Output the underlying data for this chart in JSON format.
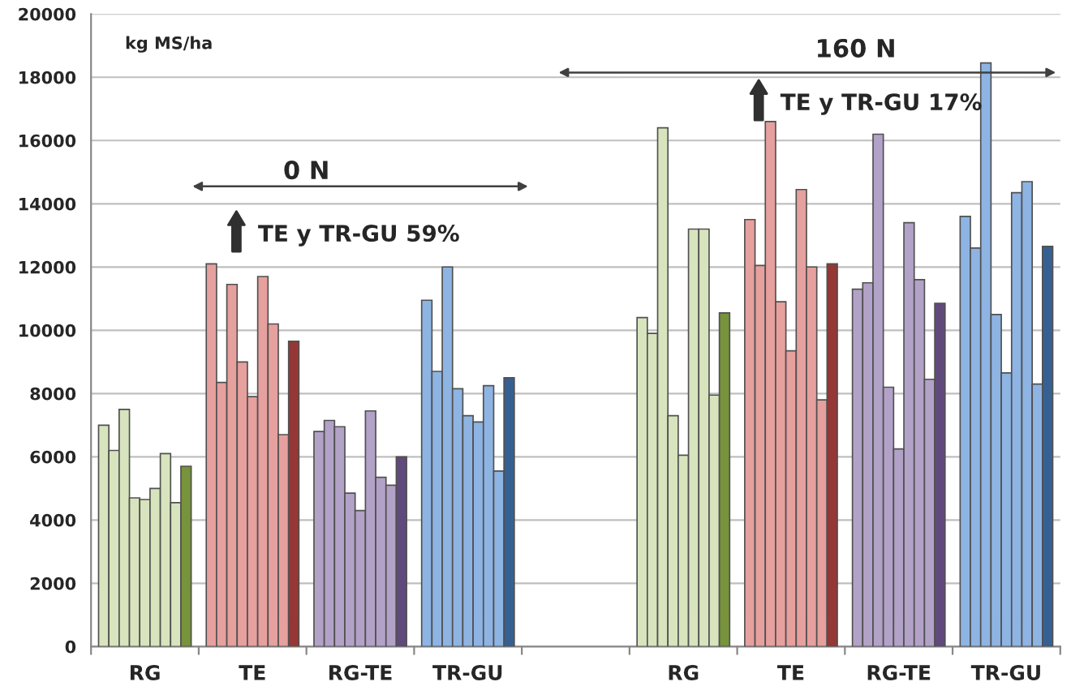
{
  "chart_data": {
    "type": "bar",
    "ylabel": "kg MS/ha",
    "categories": [
      "RG",
      "TE",
      "RG-TE",
      "TR-GU",
      null,
      "RG",
      "TE",
      "RG-TE",
      "TR-GU"
    ],
    "series": [
      {
        "colors": [
          "#d7e4bd",
          "#e6a09e",
          "#b3a2c7",
          "#8eb4e3",
          null,
          "#d7e4bd",
          "#e6a09e",
          "#b3a2c7",
          "#8eb4e3"
        ],
        "values": [
          7000,
          12100,
          6800,
          10950,
          null,
          10400,
          13500,
          11300,
          13600
        ]
      },
      {
        "colors": [
          "#d7e4bd",
          "#e6a09e",
          "#b3a2c7",
          "#8eb4e3",
          null,
          "#d7e4bd",
          "#e6a09e",
          "#b3a2c7",
          "#8eb4e3"
        ],
        "values": [
          6200,
          8350,
          7150,
          8700,
          null,
          9900,
          12050,
          11500,
          12600
        ]
      },
      {
        "colors": [
          "#d7e4bd",
          "#e6a09e",
          "#b3a2c7",
          "#8eb4e3",
          null,
          "#d7e4bd",
          "#e6a09e",
          "#b3a2c7",
          "#8eb4e3"
        ],
        "values": [
          7500,
          11450,
          6950,
          12000,
          null,
          16400,
          16600,
          16200,
          18450
        ]
      },
      {
        "colors": [
          "#d7e4bd",
          "#e6a09e",
          "#b3a2c7",
          "#8eb4e3",
          null,
          "#d7e4bd",
          "#e6a09e",
          "#b3a2c7",
          "#8eb4e3"
        ],
        "values": [
          4700,
          9000,
          4850,
          8150,
          null,
          7300,
          10900,
          8200,
          10500
        ]
      },
      {
        "colors": [
          "#d7e4bd",
          "#e6a09e",
          "#b3a2c7",
          "#8eb4e3",
          null,
          "#d7e4bd",
          "#e6a09e",
          "#b3a2c7",
          "#8eb4e3"
        ],
        "values": [
          4650,
          7900,
          4300,
          7300,
          null,
          6050,
          9350,
          6250,
          8650
        ]
      },
      {
        "colors": [
          "#d7e4bd",
          "#e6a09e",
          "#b3a2c7",
          "#8eb4e3",
          null,
          "#d7e4bd",
          "#e6a09e",
          "#b3a2c7",
          "#8eb4e3"
        ],
        "values": [
          5000,
          11700,
          7450,
          7100,
          null,
          13200,
          14450,
          13400,
          14350
        ]
      },
      {
        "colors": [
          "#d7e4bd",
          "#e6a09e",
          "#b3a2c7",
          "#8eb4e3",
          null,
          "#d7e4bd",
          "#e6a09e",
          "#b3a2c7",
          "#8eb4e3"
        ],
        "values": [
          6100,
          10200,
          5350,
          8250,
          null,
          13200,
          12000,
          11600,
          14700
        ]
      },
      {
        "colors": [
          "#d7e4bd",
          "#e6a09e",
          "#b3a2c7",
          "#8eb4e3",
          null,
          "#d7e4bd",
          "#e6a09e",
          "#b3a2c7",
          "#8eb4e3"
        ],
        "values": [
          4550,
          6700,
          5100,
          5550,
          null,
          7950,
          7800,
          8450,
          8300
        ]
      },
      {
        "colors": [
          "#77933c",
          "#953735",
          "#604a7b",
          "#376092",
          null,
          "#77933c",
          "#953735",
          "#604a7b",
          "#376092"
        ],
        "values": [
          5700,
          9650,
          6000,
          8500,
          null,
          10550,
          12100,
          10850,
          12650
        ]
      }
    ],
    "ylim": [
      0,
      20000
    ],
    "yticks": [
      0,
      2000,
      4000,
      6000,
      8000,
      10000,
      12000,
      14000,
      16000,
      18000,
      20000
    ],
    "grid": "y",
    "annotations": [
      "0 N",
      "TE y TR-GU 59%",
      "160 N",
      "TE y TR-GU 17%"
    ]
  }
}
